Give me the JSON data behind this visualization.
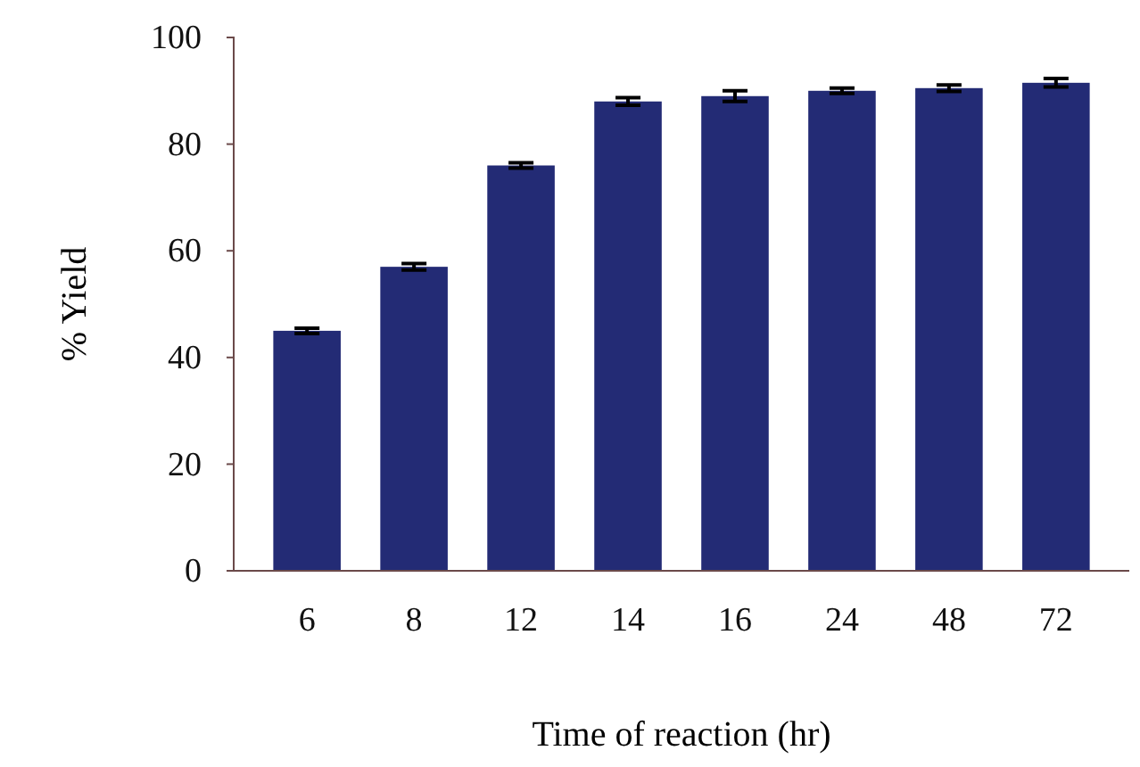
{
  "chart_data": {
    "type": "bar",
    "xlabel": "Time of reaction (hr)",
    "ylabel": "% Yield",
    "categories": [
      "6",
      "8",
      "12",
      "14",
      "16",
      "24",
      "48",
      "72"
    ],
    "values": [
      45,
      57,
      76,
      88,
      89,
      90,
      90.5,
      91.5
    ],
    "errors": [
      0.5,
      0.6,
      0.5,
      0.7,
      1,
      0.5,
      0.6,
      0.8
    ],
    "color": "#232b75",
    "ylim": [
      0,
      100
    ],
    "yticks": [
      0,
      20,
      40,
      60,
      80,
      100
    ],
    "grid": false
  }
}
